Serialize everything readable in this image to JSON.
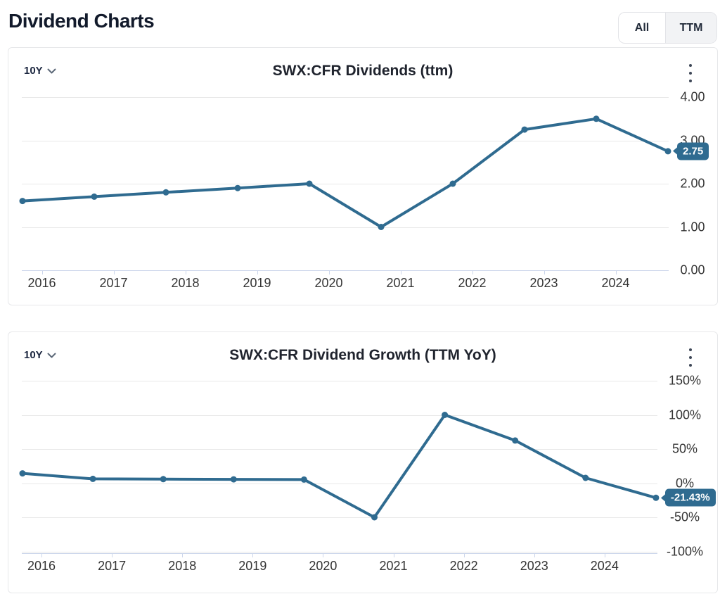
{
  "header": {
    "title": "Dividend Charts"
  },
  "toggle": {
    "options": [
      "All",
      "TTM"
    ],
    "active": "TTM"
  },
  "chart_data": [
    {
      "type": "line",
      "title": "SWX:CFR Dividends (ttm)",
      "range_selector": "10Y",
      "series_color": "#2f6b90",
      "grid_color": "#e8e8e8",
      "axis_color": "#ccd6eb",
      "x": [
        2015.73,
        2016.73,
        2017.73,
        2018.73,
        2019.73,
        2020.73,
        2021.73,
        2022.73,
        2023.73,
        2024.73
      ],
      "values": [
        1.6,
        1.7,
        1.8,
        1.9,
        2.0,
        1.0,
        2.0,
        3.25,
        3.5,
        2.75
      ],
      "last_value_label": "2.75",
      "xticks": {
        "values": [
          2016,
          2017,
          2018,
          2019,
          2020,
          2021,
          2022,
          2023,
          2024
        ],
        "labels": [
          "2016",
          "2017",
          "2018",
          "2019",
          "2020",
          "2021",
          "2022",
          "2023",
          "2024"
        ]
      },
      "yticks": {
        "values": [
          0,
          1,
          2,
          3,
          4
        ],
        "labels": [
          "0.00",
          "1.00",
          "2.00",
          "3.00",
          "4.00"
        ]
      },
      "ylim": [
        0,
        4.35
      ],
      "grid": true,
      "legend": false
    },
    {
      "type": "line",
      "title": "SWX:CFR Dividend Growth (TTM YoY)",
      "range_selector": "10Y",
      "series_color": "#2f6b90",
      "grid_color": "#e8e8e8",
      "axis_color": "#ccd6eb",
      "x": [
        2015.73,
        2016.73,
        2017.73,
        2018.73,
        2019.73,
        2020.73,
        2021.73,
        2022.73,
        2023.73,
        2024.73
      ],
      "values": [
        14.29,
        6.25,
        5.88,
        5.56,
        5.26,
        -50,
        100,
        62.5,
        7.69,
        -21.43
      ],
      "last_value_label": "-21.43%",
      "xticks": {
        "values": [
          2016,
          2017,
          2018,
          2019,
          2020,
          2021,
          2022,
          2023,
          2024
        ],
        "labels": [
          "2016",
          "2017",
          "2018",
          "2019",
          "2020",
          "2021",
          "2022",
          "2023",
          "2024"
        ]
      },
      "yticks": {
        "values": [
          -100,
          -50,
          0,
          50,
          100,
          150
        ],
        "labels": [
          "-100%",
          "-50%",
          "0%",
          "50%",
          "100%",
          "150%"
        ]
      },
      "ylim": [
        -105,
        160
      ],
      "grid": true,
      "legend": false
    }
  ]
}
